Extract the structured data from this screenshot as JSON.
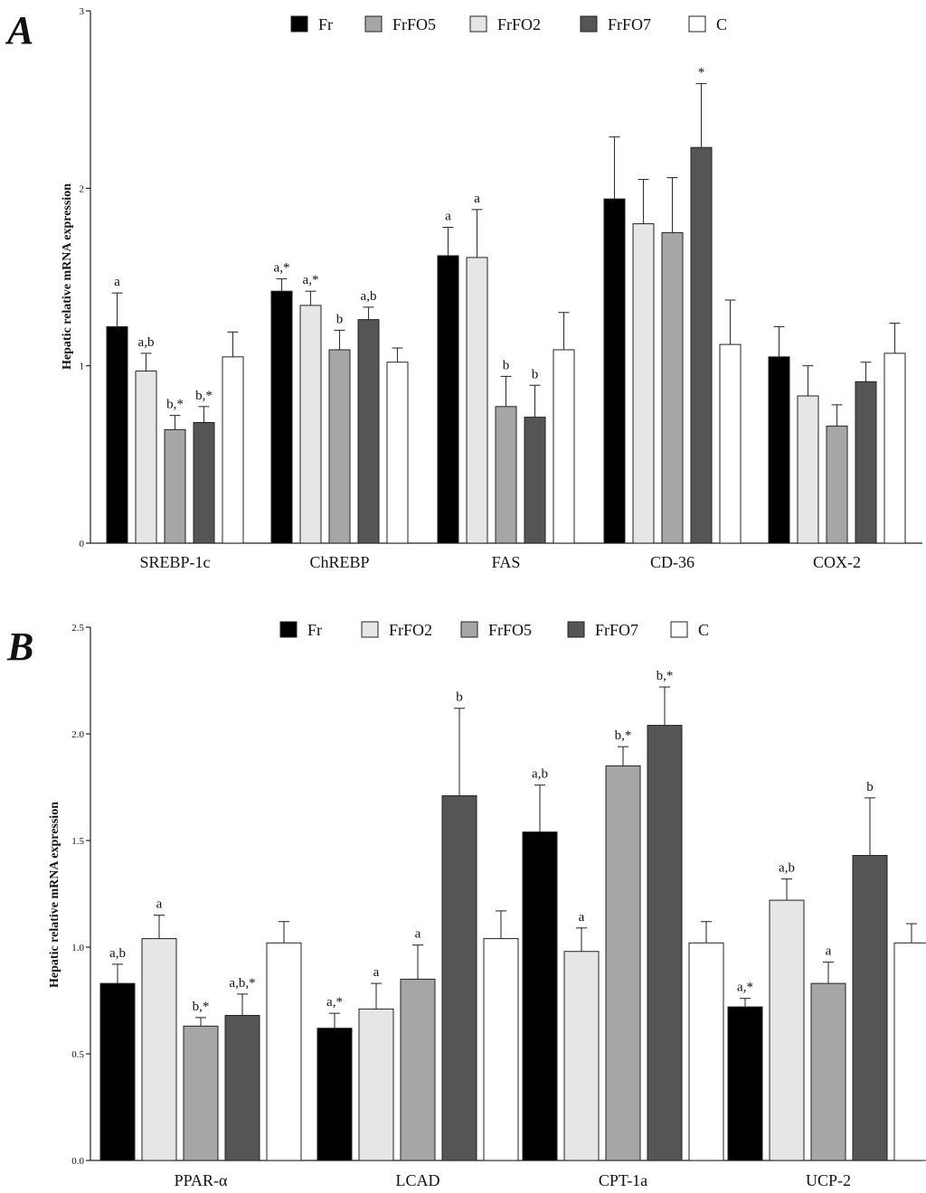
{
  "chart_data": [
    {
      "type": "bar",
      "panel": "A",
      "ylabel": "Hepatic relative mRNA expression",
      "yticks": [
        "0",
        "1",
        "2",
        "3"
      ],
      "ylim": [
        0,
        3
      ],
      "categories": [
        "SREBP-1c",
        "ChREBP",
        "FAS",
        "CD-36",
        "COX-2"
      ],
      "legend": [
        {
          "name": "Fr",
          "color": "#000000"
        },
        {
          "name": "FrFO5",
          "color": "#a6a6a6"
        },
        {
          "name": "FrFO2",
          "color": "#e6e6e6"
        },
        {
          "name": "FrFO7",
          "color": "#555555"
        },
        {
          "name": "C",
          "color": "#ffffff"
        }
      ],
      "series": [
        {
          "name": "Fr",
          "color": "#000000",
          "values": [
            1.22,
            1.42,
            1.62,
            1.94,
            1.05
          ],
          "errors": [
            0.19,
            0.07,
            0.16,
            0.35,
            0.17
          ],
          "labels": [
            "a",
            "a,*",
            "a",
            "",
            ""
          ]
        },
        {
          "name": "FrFO2",
          "color": "#e6e6e6",
          "values": [
            0.97,
            1.34,
            1.61,
            1.8,
            0.83
          ],
          "errors": [
            0.1,
            0.08,
            0.27,
            0.25,
            0.17
          ],
          "labels": [
            "a,b",
            "a,*",
            "a",
            "",
            ""
          ]
        },
        {
          "name": "FrFO5",
          "color": "#a6a6a6",
          "values": [
            0.64,
            1.09,
            0.77,
            1.75,
            0.66
          ],
          "errors": [
            0.08,
            0.11,
            0.17,
            0.31,
            0.12
          ],
          "labels": [
            "b,*",
            "b",
            "b",
            "",
            ""
          ]
        },
        {
          "name": "FrFO7",
          "color": "#555555",
          "values": [
            0.68,
            1.26,
            0.71,
            2.23,
            0.91
          ],
          "errors": [
            0.09,
            0.07,
            0.18,
            0.36,
            0.11
          ],
          "labels": [
            "b,*",
            "a,b",
            "b",
            "*",
            ""
          ]
        },
        {
          "name": "C",
          "color": "#ffffff",
          "values": [
            1.05,
            1.02,
            1.09,
            1.12,
            1.07
          ],
          "errors": [
            0.14,
            0.08,
            0.21,
            0.25,
            0.17
          ],
          "labels": [
            "",
            "",
            "",
            "",
            ""
          ]
        }
      ]
    },
    {
      "type": "bar",
      "panel": "B",
      "ylabel": "Hepatic relative mRNA expression",
      "yticks": [
        "0.0",
        "0.5",
        "1.0",
        "1.5",
        "2.0",
        "2.5"
      ],
      "ylim": [
        0,
        2.5
      ],
      "categories": [
        "PPAR-α",
        "LCAD",
        "CPT-1a",
        "UCP-2"
      ],
      "legend": [
        {
          "name": "Fr",
          "color": "#000000"
        },
        {
          "name": "FrFO2",
          "color": "#e6e6e6"
        },
        {
          "name": "FrFO5",
          "color": "#a6a6a6"
        },
        {
          "name": "FrFO7",
          "color": "#555555"
        },
        {
          "name": "C",
          "color": "#ffffff"
        }
      ],
      "series": [
        {
          "name": "Fr",
          "color": "#000000",
          "values": [
            0.83,
            0.62,
            1.54,
            0.72
          ],
          "errors": [
            0.09,
            0.07,
            0.22,
            0.04
          ],
          "labels": [
            "a,b",
            "a,*",
            "a,b",
            "a,*"
          ]
        },
        {
          "name": "FrFO2",
          "color": "#e6e6e6",
          "values": [
            1.04,
            0.71,
            0.98,
            1.22
          ],
          "errors": [
            0.11,
            0.12,
            0.11,
            0.1
          ],
          "labels": [
            "a",
            "a",
            "a",
            "a,b"
          ]
        },
        {
          "name": "FrFO5",
          "color": "#a6a6a6",
          "values": [
            0.63,
            0.85,
            1.85,
            0.83
          ],
          "errors": [
            0.04,
            0.16,
            0.09,
            0.1
          ],
          "labels": [
            "b,*",
            "a",
            "b,*",
            "a"
          ]
        },
        {
          "name": "FrFO7",
          "color": "#555555",
          "values": [
            0.68,
            1.71,
            2.04,
            1.43
          ],
          "errors": [
            0.1,
            0.41,
            0.18,
            0.27
          ],
          "labels": [
            "a,b,*",
            "b",
            "b,*",
            "b"
          ]
        },
        {
          "name": "C",
          "color": "#ffffff",
          "values": [
            1.02,
            1.04,
            1.02,
            1.02
          ],
          "errors": [
            0.1,
            0.13,
            0.1,
            0.09
          ],
          "labels": [
            "",
            "",
            "",
            ""
          ]
        }
      ]
    }
  ]
}
